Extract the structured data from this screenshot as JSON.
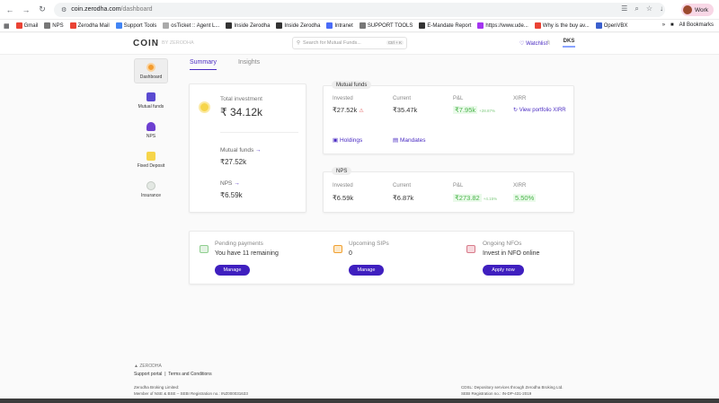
{
  "browser": {
    "url_host": "coin.zerodha.com",
    "url_path": "/dashboard",
    "profile_label": "Work",
    "bookmarks": [
      "Gmail",
      "NPS",
      "Zerodha Mail",
      "Support Tools",
      "osTicket :: Agent L...",
      "Inside Zerodha",
      "Inside Zerodha",
      "Intranet",
      "SUPPORT TOOLS",
      "E-Mandate Report",
      "https://www.ude...",
      "Why is the buy av...",
      "OpenVBX"
    ],
    "all_bookmarks": "All Bookmarks"
  },
  "header": {
    "logo": "COIN",
    "logo_sub": "BY ZERODHA",
    "search_placeholder": "Search for Mutual Funds...",
    "search_shortcut": "Ctrl + K",
    "watchlist": "Watchlist",
    "user": "DKS"
  },
  "sidebar": {
    "items": [
      {
        "label": "Dashboard"
      },
      {
        "label": "Mutual funds"
      },
      {
        "label": "NPS"
      },
      {
        "label": "Fixed Deposit"
      },
      {
        "label": "Insurance"
      }
    ]
  },
  "tabs": [
    "Summary",
    "Insights"
  ],
  "summary": {
    "total_label": "Total investment",
    "total_value": "₹ 34.12k",
    "mf_label": "Mutual funds",
    "mf_value": "₹27.52k",
    "nps_label": "NPS",
    "nps_value": "₹6.59k"
  },
  "mutual_funds": {
    "pill": "Mutual funds",
    "invested_label": "Invested",
    "invested_value": "₹27.52k",
    "current_label": "Current",
    "current_value": "₹35.47k",
    "pl_label": "P&L",
    "pl_value": "₹7.95k",
    "pl_pct": "+28.87%",
    "xirr_label": "XIRR",
    "xirr_link": "View portfolio XIRR",
    "holdings": "Holdings",
    "mandates": "Mandates"
  },
  "nps": {
    "pill": "NPS",
    "invested_label": "Invested",
    "invested_value": "₹6.59k",
    "current_label": "Current",
    "current_value": "₹6.87k",
    "pl_label": "P&L",
    "pl_value": "₹273.82",
    "pl_pct": "+4.15%",
    "xirr_label": "XIRR",
    "xirr_value": "5.50%"
  },
  "bottom": {
    "pending_title": "Pending payments",
    "pending_text": "You have 11 remaining",
    "pending_btn": "Manage",
    "sips_title": "Upcoming SIPs",
    "sips_text": "0",
    "sips_btn": "Manage",
    "nfo_title": "Ongoing NFOs",
    "nfo_text": "Invest in NFO online",
    "nfo_btn": "Apply now"
  },
  "footer": {
    "logo": "ZERODHA",
    "support": "Support portal",
    "sep": "|",
    "terms": "Terms and Conditions",
    "left1": "Zerodha Broking Limited:",
    "left2": "Member of NSE & BSE – SEBI Registration no.: INZ000031633",
    "right1": "CDSL: Depository services through Zerodha Broking Ltd.",
    "right2": "SEBI Registration no.: IN-DP-431-2019"
  },
  "colors": {
    "accent": "#4a2bc2",
    "button": "#3f1fbf",
    "positive": "#49b449"
  }
}
